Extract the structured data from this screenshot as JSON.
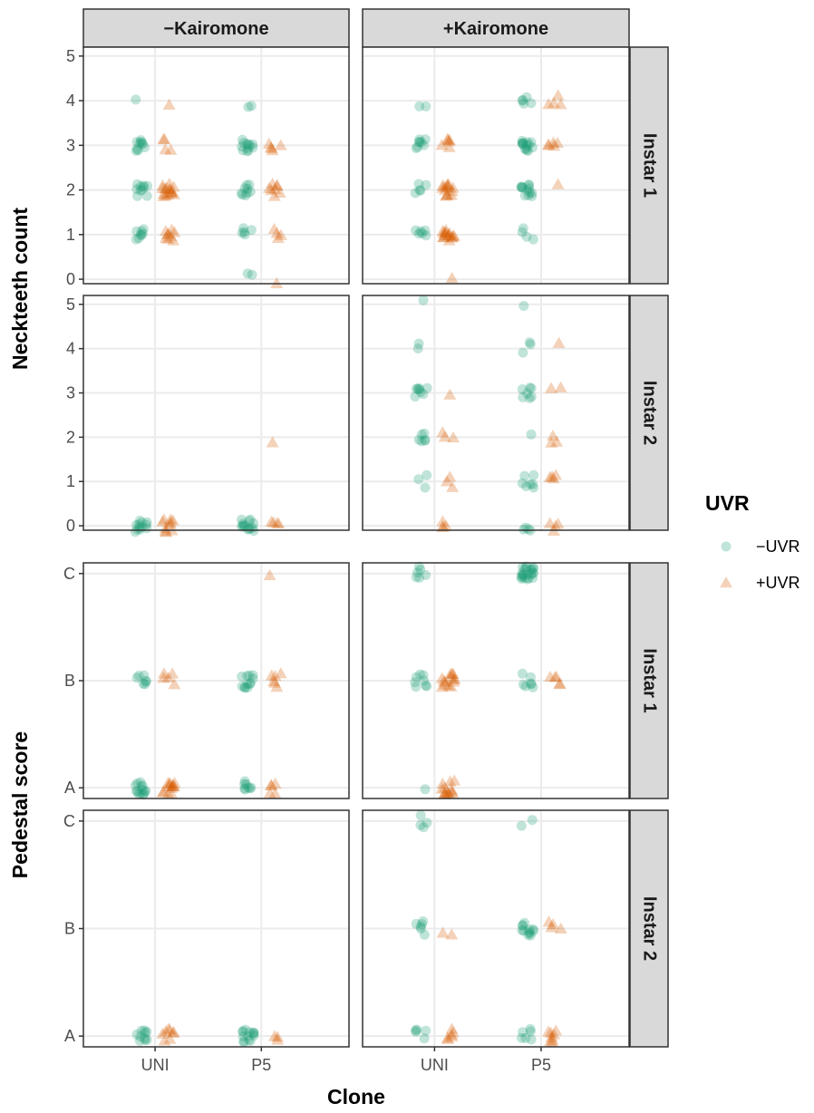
{
  "chart_data": {
    "type": "scatter",
    "xlabel": "Clone",
    "categories": [
      "UNI",
      "P5"
    ],
    "column_facets": [
      "−Kairomone",
      "+Kairomone"
    ],
    "legend": {
      "title": "UVR",
      "position": "right",
      "entries": [
        {
          "label": "−UVR",
          "color": "#1b9e77",
          "shape": "circle"
        },
        {
          "label": "+UVR",
          "color": "#d95f02",
          "shape": "triangle"
        }
      ]
    },
    "grid": true,
    "y_groups": [
      {
        "ylabel": "Neckteeth count",
        "tick_labels": [
          "0",
          "1",
          "2",
          "3",
          "4",
          "5"
        ],
        "ylim": [
          -0.1,
          5.2
        ]
      },
      {
        "ylabel": "Pedestal score",
        "tick_labels": [
          "A",
          "B",
          "C"
        ],
        "ylim": [
          0.9,
          3.1
        ]
      }
    ],
    "panels": [
      {
        "row_label": "Instar 1",
        "group": 0,
        "cells": [
          {
            "col": 0,
            "clone": "UNI",
            "uvr": "−UVR",
            "counts": {
              "1": 8,
              "2": 10,
              "3": 10,
              "4": 1
            }
          },
          {
            "col": 0,
            "clone": "UNI",
            "uvr": "+UVR",
            "counts": {
              "1": 9,
              "2": 16,
              "3": 4,
              "4": 1
            }
          },
          {
            "col": 0,
            "clone": "P5",
            "uvr": "−UVR",
            "counts": {
              "0": 2,
              "1": 5,
              "2": 9,
              "3": 12,
              "4": 2
            }
          },
          {
            "col": 0,
            "clone": "P5",
            "uvr": "+UVR",
            "counts": {
              "0": 1,
              "1": 4,
              "2": 8,
              "3": 5
            }
          },
          {
            "col": 1,
            "clone": "UNI",
            "uvr": "−UVR",
            "counts": {
              "1": 6,
              "2": 5,
              "3": 8,
              "4": 2
            }
          },
          {
            "col": 1,
            "clone": "UNI",
            "uvr": "+UVR",
            "counts": {
              "0": 1,
              "1": 16,
              "2": 14,
              "3": 6
            }
          },
          {
            "col": 1,
            "clone": "P5",
            "uvr": "−UVR",
            "counts": {
              "1": 4,
              "2": 13,
              "3": 14,
              "4": 5
            }
          },
          {
            "col": 1,
            "clone": "P5",
            "uvr": "+UVR",
            "counts": {
              "2": 1,
              "3": 5,
              "4": 4
            }
          }
        ]
      },
      {
        "row_label": "Instar 2",
        "group": 0,
        "cells": [
          {
            "col": 0,
            "clone": "UNI",
            "uvr": "−UVR",
            "counts": {
              "0": 12
            }
          },
          {
            "col": 0,
            "clone": "UNI",
            "uvr": "+UVR",
            "counts": {
              "0": 10
            }
          },
          {
            "col": 0,
            "clone": "P5",
            "uvr": "−UVR",
            "counts": {
              "0": 14
            }
          },
          {
            "col": 0,
            "clone": "P5",
            "uvr": "+UVR",
            "counts": {
              "0": 4,
              "2": 1
            }
          },
          {
            "col": 1,
            "clone": "UNI",
            "uvr": "−UVR",
            "counts": {
              "1": 3,
              "2": 6,
              "3": 8,
              "4": 2,
              "5": 1
            }
          },
          {
            "col": 1,
            "clone": "UNI",
            "uvr": "+UVR",
            "counts": {
              "0": 4,
              "1": 3,
              "2": 3,
              "3": 1
            }
          },
          {
            "col": 1,
            "clone": "P5",
            "uvr": "−UVR",
            "counts": {
              "0": 4,
              "1": 7,
              "2": 1,
              "3": 7,
              "4": 3,
              "5": 1
            }
          },
          {
            "col": 1,
            "clone": "P5",
            "uvr": "+UVR",
            "counts": {
              "0": 4,
              "1": 4,
              "2": 3,
              "3": 2,
              "4": 1
            }
          }
        ]
      },
      {
        "row_label": "Instar 1",
        "group": 1,
        "cells": [
          {
            "col": 0,
            "clone": "UNI",
            "uvr": "−UVR",
            "counts": {
              "A": 14,
              "B": 7
            }
          },
          {
            "col": 0,
            "clone": "UNI",
            "uvr": "+UVR",
            "counts": {
              "A": 14,
              "B": 5
            }
          },
          {
            "col": 0,
            "clone": "P5",
            "uvr": "−UVR",
            "counts": {
              "A": 8,
              "B": 12
            }
          },
          {
            "col": 0,
            "clone": "P5",
            "uvr": "+UVR",
            "counts": {
              "A": 5,
              "B": 6,
              "C": 1
            }
          },
          {
            "col": 1,
            "clone": "UNI",
            "uvr": "−UVR",
            "counts": {
              "A": 1,
              "B": 8,
              "C": 6
            }
          },
          {
            "col": 1,
            "clone": "UNI",
            "uvr": "+UVR",
            "counts": {
              "A": 14,
              "B": 14
            }
          },
          {
            "col": 1,
            "clone": "P5",
            "uvr": "−UVR",
            "counts": {
              "B": 7,
              "C": 22
            }
          },
          {
            "col": 1,
            "clone": "P5",
            "uvr": "+UVR",
            "counts": {
              "B": 5
            }
          }
        ]
      },
      {
        "row_label": "Instar 2",
        "group": 1,
        "cells": [
          {
            "col": 0,
            "clone": "UNI",
            "uvr": "−UVR",
            "counts": {
              "A": 10
            }
          },
          {
            "col": 0,
            "clone": "UNI",
            "uvr": "+UVR",
            "counts": {
              "A": 8
            }
          },
          {
            "col": 0,
            "clone": "P5",
            "uvr": "−UVR",
            "counts": {
              "A": 14
            }
          },
          {
            "col": 0,
            "clone": "P5",
            "uvr": "+UVR",
            "counts": {
              "A": 3
            }
          },
          {
            "col": 1,
            "clone": "UNI",
            "uvr": "−UVR",
            "counts": {
              "A": 5,
              "B": 6,
              "C": 4
            }
          },
          {
            "col": 1,
            "clone": "UNI",
            "uvr": "+UVR",
            "counts": {
              "A": 6,
              "B": 2
            }
          },
          {
            "col": 1,
            "clone": "P5",
            "uvr": "−UVR",
            "counts": {
              "A": 6,
              "B": 12,
              "C": 2
            }
          },
          {
            "col": 1,
            "clone": "P5",
            "uvr": "+UVR",
            "counts": {
              "A": 8,
              "B": 4
            }
          }
        ]
      }
    ]
  }
}
